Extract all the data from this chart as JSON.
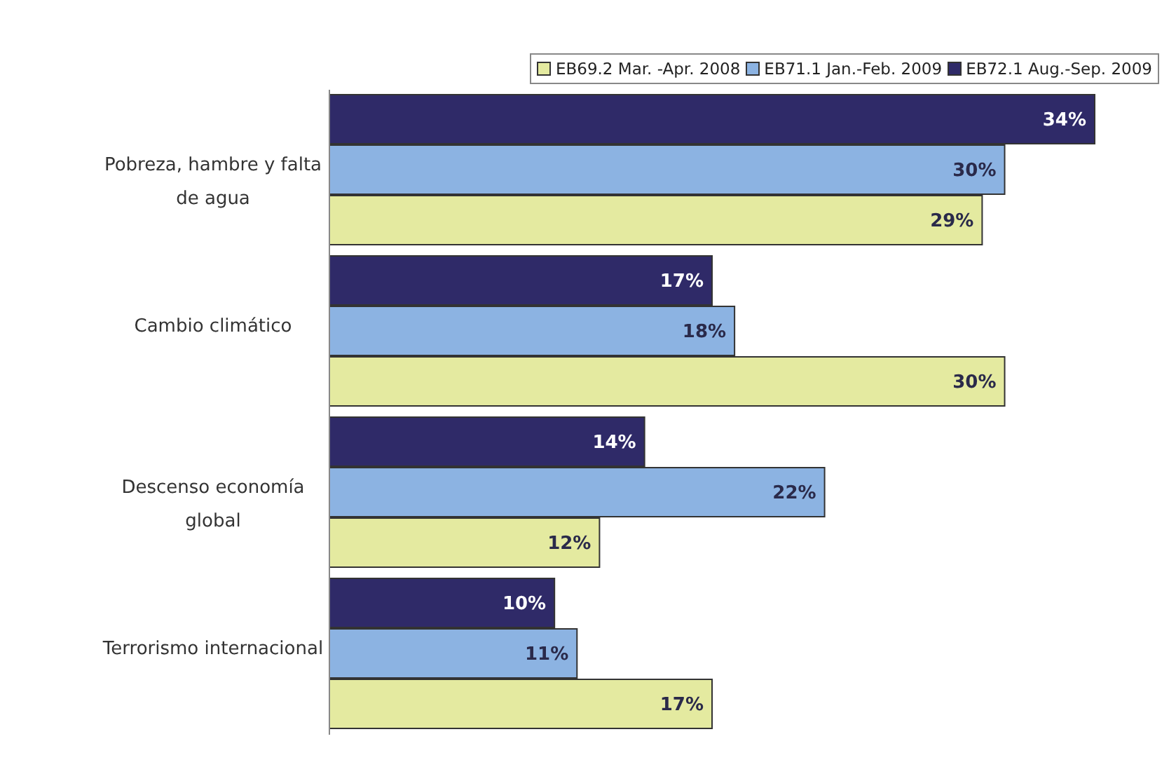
{
  "chart_data": {
    "type": "bar",
    "orientation": "horizontal",
    "categories": [
      "Pobreza, hambre y falta de agua",
      "Cambio climático",
      "Descenso economía global",
      "Terrorismo internacional"
    ],
    "series": [
      {
        "name": "EB69.2 Mar. -Apr. 2008",
        "color": "#e4eaa0",
        "values": [
          29,
          30,
          12,
          17
        ],
        "value_labels": [
          "29%",
          "30%",
          "12%",
          "17%"
        ]
      },
      {
        "name": "EB71.1 Jan.-Feb. 2009",
        "color": "#8cb3e2",
        "values": [
          30,
          18,
          22,
          11
        ],
        "value_labels": [
          "30%",
          "18%",
          "22%",
          "11%"
        ]
      },
      {
        "name": "EB72.1 Aug.-Sep. 2009",
        "color": "#2f2a68",
        "values": [
          34,
          17,
          14,
          10
        ],
        "value_labels": [
          "34%",
          "17%",
          "14%",
          "10%"
        ]
      }
    ],
    "legend": "top right",
    "grid": false
  }
}
